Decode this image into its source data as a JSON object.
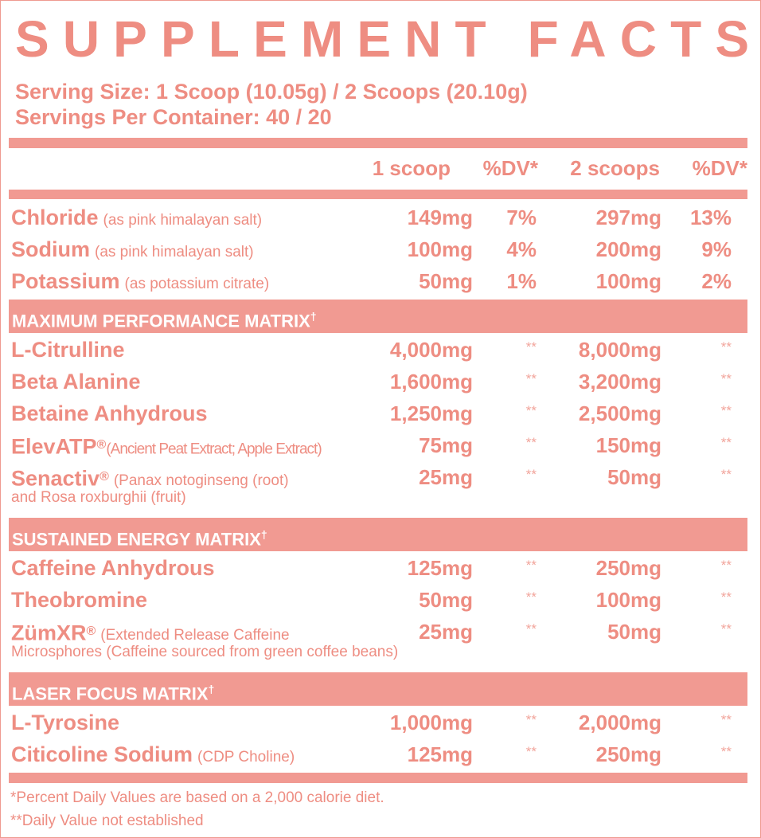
{
  "title": "SUPPLEMENT FACTS",
  "serving_size": "Serving Size: 1 Scoop (10.05g) / 2 Scoops (20.10g)",
  "servings_per_container": "Servings Per Container: 40 / 20",
  "header": [
    "1 scoop",
    "%DV*",
    "2 scoops",
    "%DV*"
  ],
  "sections": [
    {
      "rows": [
        {
          "name": "Chloride",
          "note": "(as pink himalayan salt)",
          "values": [
            "149mg",
            "7%",
            "297mg",
            "13%"
          ]
        },
        {
          "name": "Sodium",
          "note": "(as pink himalayan salt)",
          "values": [
            "100mg",
            "4%",
            "200mg",
            "9%"
          ]
        },
        {
          "name": "Potassium",
          "note": "(as potassium citrate)",
          "values": [
            "50mg",
            "1%",
            "100mg",
            "2%"
          ]
        }
      ]
    },
    {
      "title": "MAXIMUM PERFORMANCE MATRIX",
      "mark": "†",
      "rows": [
        {
          "name": "L-Citrulline",
          "values": [
            "4,000mg",
            "**",
            "8,000mg",
            "**"
          ]
        },
        {
          "name": "Beta Alanine",
          "values": [
            "1,600mg",
            "**",
            "3,200mg",
            "**"
          ]
        },
        {
          "name": "Betaine Anhydrous",
          "values": [
            "1,250mg",
            "**",
            "2,500mg",
            "**"
          ]
        },
        {
          "name": "ElevATP",
          "mark": "®",
          "note": "(Ancient Peat Extract; Apple Extract)",
          "values": [
            "75mg",
            "**",
            "150mg",
            "**"
          ]
        },
        {
          "name": "Senactiv",
          "mark": "®",
          "note": "(Panax notoginseng (root)",
          "note_cont": "and Rosa roxburghii (fruit)",
          "values": [
            "25mg",
            "**",
            "50mg",
            "**"
          ]
        }
      ]
    },
    {
      "title": "SUSTAINED ENERGY MATRIX",
      "mark": "†",
      "rows": [
        {
          "name": "Caffeine Anhydrous",
          "values": [
            "125mg",
            "**",
            "250mg",
            "**"
          ]
        },
        {
          "name": "Theobromine",
          "values": [
            "50mg",
            "**",
            "100mg",
            "**"
          ]
        },
        {
          "name": "ZümXR",
          "mark": "®",
          "note": "(Extended Release Caffeine",
          "note_cont": "Microsphores (Caffeine sourced from green coffee beans)",
          "values": [
            "25mg",
            "**",
            "50mg",
            "**"
          ]
        }
      ]
    },
    {
      "title": "LASER FOCUS MATRIX",
      "mark": "†",
      "rows": [
        {
          "name": "L-Tyrosine",
          "values": [
            "1,000mg",
            "**",
            "2,000mg",
            "**"
          ]
        },
        {
          "name": "Citicoline Sodium",
          "note": "(CDP Choline)",
          "values": [
            "125mg",
            "**",
            "250mg",
            "**"
          ]
        }
      ]
    }
  ],
  "footnotes": [
    "*Percent Daily Values are based on a 2,000 calorie diet.",
    "**Daily Value not established"
  ]
}
